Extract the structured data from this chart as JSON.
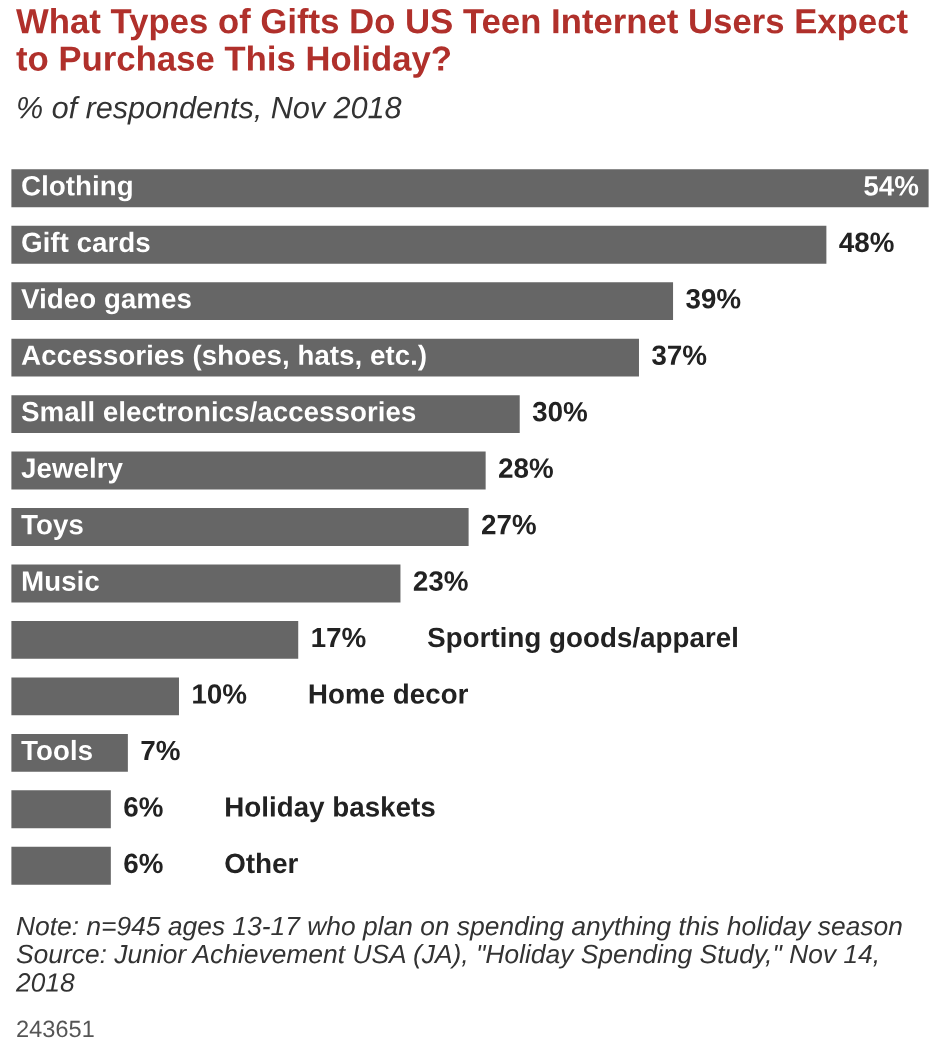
{
  "chart_data": {
    "type": "bar",
    "orientation": "horizontal",
    "title": "What Types of Gifts Do US Teen Internet Users Expect to Purchase This Holiday?",
    "subtitle": "% of respondents, Nov 2018",
    "categories": [
      "Clothing",
      "Gift cards",
      "Video games",
      "Accessories (shoes, hats, etc.)",
      "Small electronics/accessories",
      "Jewelry",
      "Toys",
      "Music",
      "Sporting goods/apparel",
      "Home decor",
      "Tools",
      "Holiday baskets",
      "Other"
    ],
    "values": [
      54,
      48,
      39,
      37,
      30,
      28,
      27,
      23,
      17,
      10,
      7,
      6,
      6
    ],
    "value_labels": [
      "54%",
      "48%",
      "39%",
      "37%",
      "30%",
      "28%",
      "27%",
      "23%",
      "17%",
      "10%",
      "7%",
      "6%",
      "6%"
    ],
    "color": "#666666",
    "annotations": [
      "Note: n=945 ages 13-17 who plan on spending anything this holiday season",
      "Source: Junior Achievement USA (JA), \"Holiday Spending Study,\" Nov 14, 2018",
      "243651"
    ]
  }
}
